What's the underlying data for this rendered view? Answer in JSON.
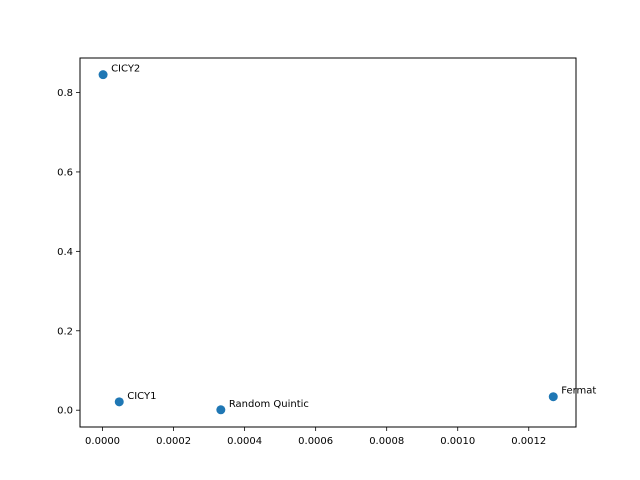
{
  "chart_data": {
    "type": "scatter",
    "title": "",
    "xlabel": "",
    "ylabel": "",
    "xlim": [
      -6.35e-05,
      0.001333
    ],
    "ylim": [
      -0.0423,
      0.8869
    ],
    "xticks": [
      {
        "value": 0.0,
        "label": "0.0000"
      },
      {
        "value": 0.0002,
        "label": "0.0002"
      },
      {
        "value": 0.0004,
        "label": "0.0004"
      },
      {
        "value": 0.0006,
        "label": "0.0006"
      },
      {
        "value": 0.0008,
        "label": "0.0008"
      },
      {
        "value": 0.001,
        "label": "0.0010"
      },
      {
        "value": 0.0012,
        "label": "0.0012"
      }
    ],
    "yticks": [
      {
        "value": 0.0,
        "label": "0.0"
      },
      {
        "value": 0.2,
        "label": "0.2"
      },
      {
        "value": 0.4,
        "label": "0.4"
      },
      {
        "value": 0.6,
        "label": "0.6"
      },
      {
        "value": 0.8,
        "label": "0.8"
      }
    ],
    "grid": false,
    "color": "#1f77b4",
    "points": [
      {
        "x": 1.5e-06,
        "y": 0.845,
        "label": "CICY2"
      },
      {
        "x": 4.7e-05,
        "y": 0.021,
        "label": "CICY1"
      },
      {
        "x": 0.000333,
        "y": 0.001,
        "label": "Random Quintic"
      },
      {
        "x": 0.001269,
        "y": 0.034,
        "label": "Fermat"
      }
    ]
  }
}
